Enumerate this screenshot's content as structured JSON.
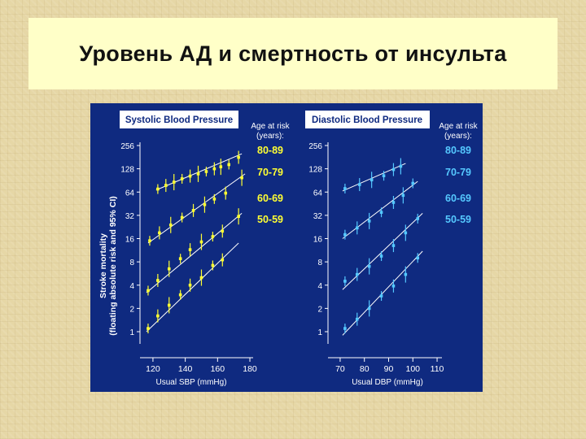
{
  "slide": {
    "title": "Уровень АД и смертность от инсульта"
  },
  "colors": {
    "panel_bg": "#0f2a80",
    "systolic_marks": "#ffff33",
    "diastolic_marks": "#55c8ff",
    "text": "#ffffff"
  },
  "chart_data": [
    {
      "type": "line",
      "title": "Systolic Blood Pressure",
      "xlabel": "Usual SBP (mmHg)",
      "ylabel_line1": "Stroke mortality",
      "ylabel_line2": "(floating absolute risk and 95% CI)",
      "legend_title_line1": "Age at risk",
      "legend_title_line2": "(years):",
      "y_scale": "log2",
      "xlim": [
        115,
        182
      ],
      "ylim": [
        0.8,
        300
      ],
      "x_ticks": [
        120,
        140,
        160,
        180
      ],
      "x_tick_labels": [
        "120",
        "140",
        "160",
        "180"
      ],
      "y_ticks": [
        1,
        2,
        4,
        8,
        16,
        32,
        64,
        128,
        256
      ],
      "y_tick_labels": [
        "1",
        "2",
        "4",
        "8",
        "16",
        "32",
        "64",
        "128",
        "256"
      ],
      "series": [
        {
          "name": "80-89",
          "x": [
            123,
            128,
            133,
            138,
            143,
            148,
            153,
            158,
            162,
            167,
            173
          ],
          "y": [
            70,
            78,
            86,
            95,
            103,
            110,
            118,
            128,
            136,
            145,
            180
          ],
          "fit": [
            [
              122,
              68
            ],
            [
              175,
              200
            ]
          ]
        },
        {
          "name": "70-79",
          "x": [
            118,
            124,
            131,
            138,
            145,
            152,
            158,
            165,
            175
          ],
          "y": [
            15,
            19,
            24,
            30,
            37,
            44,
            52,
            62,
            98
          ],
          "fit": [
            [
              117,
              14
            ],
            [
              177,
              110
            ]
          ]
        },
        {
          "name": "60-69",
          "x": [
            117,
            123,
            130,
            137,
            143,
            150,
            157,
            163,
            173
          ],
          "y": [
            3.4,
            4.6,
            6.5,
            8.8,
            11.5,
            14.5,
            17,
            20,
            31
          ],
          "fit": [
            [
              116,
              3.2
            ],
            [
              175,
              34
            ]
          ]
        },
        {
          "name": "50-59",
          "x": [
            117,
            123,
            130,
            137,
            143,
            150,
            157,
            163
          ],
          "y": [
            1.1,
            1.6,
            2.2,
            3.0,
            4.0,
            5.0,
            7.2,
            8.5
          ],
          "fit": [
            [
              116,
              1.0
            ],
            [
              173,
              14
            ]
          ]
        }
      ]
    },
    {
      "type": "line",
      "title": "Diastolic Blood Pressure",
      "xlabel": "Usual DBP (mmHg)",
      "legend_title_line1": "Age at risk",
      "legend_title_line2": "(years):",
      "y_scale": "log2",
      "xlim": [
        67,
        112
      ],
      "ylim": [
        0.8,
        300
      ],
      "x_ticks": [
        70,
        80,
        90,
        100,
        110
      ],
      "x_tick_labels": [
        "70",
        "80",
        "90",
        "100",
        "110"
      ],
      "y_ticks": [
        1,
        2,
        4,
        8,
        16,
        32,
        64,
        128,
        256
      ],
      "y_tick_labels": [
        "1",
        "2",
        "4",
        "8",
        "16",
        "32",
        "64",
        "128",
        "256"
      ],
      "series": [
        {
          "name": "80-89",
          "x": [
            72,
            78,
            83,
            88,
            92,
            95
          ],
          "y": [
            71,
            80,
            92,
            104,
            125,
            138
          ],
          "fit": [
            [
              71,
              66
            ],
            [
              97,
              150
            ]
          ]
        },
        {
          "name": "70-79",
          "x": [
            72,
            77,
            82,
            87,
            92,
            96,
            100
          ],
          "y": [
            18,
            22,
            27,
            35,
            47,
            58,
            83
          ],
          "fit": [
            [
              71,
              16
            ],
            [
              102,
              88
            ]
          ]
        },
        {
          "name": "60-69",
          "x": [
            72,
            77,
            82,
            87,
            92,
            97,
            102
          ],
          "y": [
            4.5,
            5.5,
            7.0,
            9.5,
            13,
            19,
            29
          ],
          "fit": [
            [
              71,
              3.5
            ],
            [
              104,
              34
            ]
          ]
        },
        {
          "name": "50-59",
          "x": [
            72,
            77,
            82,
            87,
            92,
            97,
            102
          ],
          "y": [
            1.1,
            1.45,
            2.0,
            2.9,
            3.9,
            5.5,
            9
          ],
          "fit": [
            [
              71,
              0.9
            ],
            [
              104,
              11
            ]
          ]
        }
      ]
    }
  ]
}
